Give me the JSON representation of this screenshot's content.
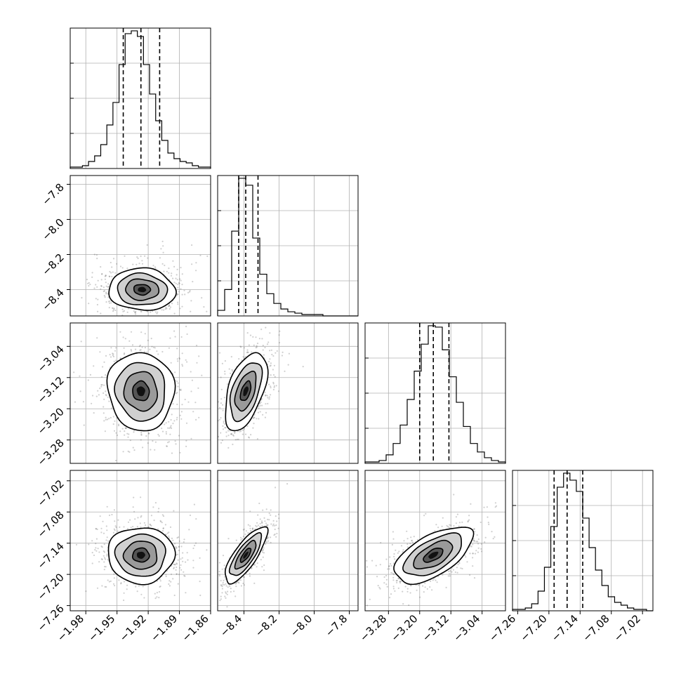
{
  "chart_data": {
    "type": "corner",
    "grid": true,
    "parameters": [
      {
        "range": [
          -1.995,
          -1.86
        ],
        "ticks": [
          -1.98,
          -1.95,
          -1.92,
          -1.89,
          -1.86
        ],
        "tick_labels": [
          "−1.98",
          "−1.95",
          "−1.92",
          "−1.89",
          "−1.86"
        ],
        "quantiles": [
          -1.944,
          -1.927,
          -1.909
        ],
        "hist_counts": [
          1,
          1,
          2,
          5,
          9,
          17,
          31,
          47,
          74,
          96,
          98,
          94,
          74,
          53,
          34,
          20,
          11,
          7,
          5,
          4,
          2,
          1,
          1
        ]
      },
      {
        "range": [
          -8.55,
          -7.75
        ],
        "ticks": [
          -8.4,
          -8.2,
          -8.0,
          -7.8
        ],
        "tick_labels": [
          "−8.4",
          "−8.2",
          "−8.0",
          "−7.8"
        ],
        "left_ticks": [
          -7.8,
          -8.0,
          -8.2,
          -8.4
        ],
        "left_tick_labels": [
          "−7.8",
          "−8.0",
          "−8.2",
          "−8.4"
        ],
        "quantiles": [
          -8.43,
          -8.39,
          -8.32
        ],
        "hist_counts": [
          4,
          19,
          61,
          99,
          94,
          56,
          30,
          16,
          9,
          5,
          3,
          2,
          1,
          1,
          1,
          0,
          0,
          0,
          0,
          0
        ]
      },
      {
        "range": [
          -3.34,
          -2.98
        ],
        "ticks": [
          -3.28,
          -3.2,
          -3.12,
          -3.04
        ],
        "tick_labels": [
          "−3.28",
          "−3.20",
          "−3.12",
          "−3.04"
        ],
        "left_ticks": [
          -3.04,
          -3.12,
          -3.2,
          -3.28
        ],
        "left_tick_labels": [
          "−3.04",
          "−3.12",
          "−3.20",
          "−3.28"
        ],
        "quantiles": [
          -3.2,
          -3.165,
          -3.125
        ],
        "hist_counts": [
          1,
          1,
          2,
          6,
          14,
          27,
          45,
          65,
          84,
          97,
          96,
          80,
          61,
          43,
          26,
          14,
          8,
          4,
          2,
          1
        ]
      },
      {
        "range": [
          -7.27,
          -7.0
        ],
        "ticks": [
          -7.26,
          -7.2,
          -7.14,
          -7.08,
          -7.02
        ],
        "tick_labels": [
          "−7.26",
          "−7.20",
          "−7.14",
          "−7.08",
          "−7.02"
        ],
        "left_ticks": [
          -7.02,
          -7.08,
          -7.14,
          -7.2,
          -7.26
        ],
        "left_tick_labels": [
          "−7.02",
          "−7.08",
          "−7.14",
          "−7.20",
          "−7.26"
        ],
        "quantiles": [
          -7.19,
          -7.165,
          -7.135
        ],
        "hist_counts": [
          1,
          1,
          2,
          5,
          14,
          31,
          60,
          88,
          98,
          93,
          85,
          66,
          45,
          29,
          18,
          10,
          6,
          4,
          2,
          1,
          1,
          0
        ]
      }
    ],
    "pairs": [
      {
        "x": 0,
        "y": 1,
        "center": [
          -1.926,
          -8.4
        ],
        "sigma": [
          0.016,
          0.06
        ],
        "rho": -0.05
      },
      {
        "x": 0,
        "y": 2,
        "center": [
          -1.927,
          -3.155
        ],
        "sigma": [
          0.016,
          0.05
        ],
        "rho": -0.05
      },
      {
        "x": 1,
        "y": 2,
        "center": [
          -8.39,
          -3.155
        ],
        "sigma": [
          0.06,
          0.05
        ],
        "rho": 0.5
      },
      {
        "x": 0,
        "y": 3,
        "center": [
          -1.927,
          -7.163
        ],
        "sigma": [
          0.016,
          0.027
        ],
        "rho": 0.0
      },
      {
        "x": 1,
        "y": 3,
        "center": [
          -8.39,
          -7.163
        ],
        "sigma": [
          0.06,
          0.027
        ],
        "rho": 0.78
      },
      {
        "x": 2,
        "y": 3,
        "center": [
          -3.165,
          -7.163
        ],
        "sigma": [
          0.05,
          0.027
        ],
        "rho": 0.6
      }
    ]
  }
}
